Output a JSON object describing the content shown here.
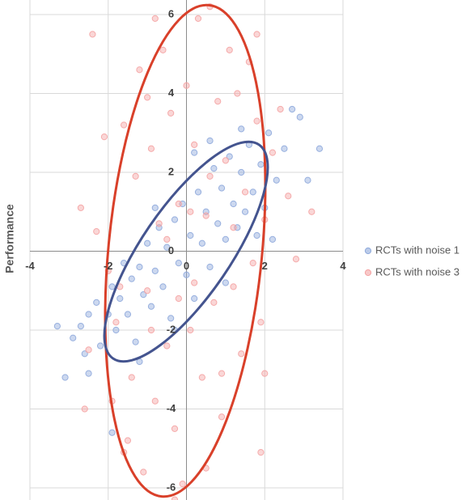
{
  "chart_data": {
    "type": "scatter",
    "y_axis_label": "Performance",
    "xlim": [
      -4,
      4
    ],
    "ylim": [
      -6,
      6
    ],
    "xticks": [
      -4,
      -2,
      0,
      2,
      4
    ],
    "yticks": [
      -6,
      -4,
      -2,
      0,
      2,
      4,
      6
    ],
    "grid": true,
    "legend": "right",
    "series": [
      {
        "name": "RCTs with noise 1",
        "color": "#8ea9db",
        "x": [
          -3.3,
          -3.1,
          -2.9,
          -2.7,
          -2.6,
          -2.5,
          -2.3,
          -2.2,
          -2.0,
          -1.9,
          -1.8,
          -1.7,
          -1.6,
          -1.5,
          -1.4,
          -1.3,
          -1.2,
          -1.1,
          -1.0,
          -0.9,
          -0.8,
          -0.7,
          -0.6,
          -0.5,
          -0.4,
          -0.3,
          -0.2,
          -0.1,
          0.0,
          0.1,
          0.2,
          0.3,
          0.4,
          0.5,
          0.6,
          0.7,
          0.8,
          0.9,
          1.0,
          1.1,
          1.2,
          1.3,
          1.4,
          1.5,
          1.6,
          1.7,
          1.8,
          1.9,
          2.0,
          2.1,
          2.3,
          2.5,
          2.7,
          2.9,
          3.1,
          3.4,
          -1.9,
          -2.5,
          0.2,
          -0.8,
          1.0,
          -0.3,
          0.6,
          -1.2,
          1.4,
          2.2
        ],
        "values": [
          -1.9,
          -3.2,
          -2.2,
          -1.9,
          -2.6,
          -1.6,
          -1.3,
          -2.4,
          -1.6,
          -0.9,
          -2.0,
          -1.2,
          -0.3,
          -1.6,
          -0.7,
          -2.3,
          -0.4,
          -1.1,
          0.2,
          -1.4,
          -0.5,
          0.6,
          -0.9,
          0.1,
          -1.7,
          0.8,
          -0.3,
          1.2,
          -0.6,
          0.4,
          -1.2,
          1.5,
          0.2,
          1.0,
          -0.4,
          2.1,
          0.7,
          1.6,
          0.3,
          2.4,
          1.2,
          0.6,
          2.0,
          1.0,
          2.7,
          1.5,
          0.4,
          2.2,
          1.1,
          3.0,
          1.8,
          2.6,
          3.6,
          3.4,
          1.8,
          2.6,
          -4.6,
          -3.1,
          2.5,
          1.1,
          -0.8,
          -2.0,
          2.8,
          -2.8,
          3.1,
          0.3
        ]
      },
      {
        "name": "RCTs with noise 3",
        "color": "#f4a3a3",
        "x": [
          -2.4,
          -1.6,
          -2.1,
          -2.3,
          -2.0,
          -2.6,
          -2.5,
          -1.8,
          -1.5,
          -1.4,
          -1.3,
          -1.2,
          -1.1,
          -1.0,
          -0.9,
          -0.8,
          -0.7,
          -0.6,
          -0.5,
          -0.4,
          -0.3,
          -0.2,
          -0.1,
          0.0,
          0.1,
          0.2,
          0.3,
          0.4,
          0.5,
          0.6,
          0.7,
          0.8,
          0.9,
          1.0,
          1.1,
          1.2,
          1.3,
          1.4,
          1.5,
          1.6,
          1.7,
          1.8,
          1.9,
          2.0,
          2.2,
          2.4,
          2.6,
          2.8,
          3.2,
          -0.9,
          -0.5,
          0.2,
          0.6,
          -1.7,
          1.2,
          -0.2,
          0.9,
          -1.6,
          -2.7,
          -1.9,
          2.0,
          1.9,
          -0.3,
          0.5,
          -0.8,
          1.8,
          -1.0,
          0.1
        ],
        "values": [
          5.5,
          3.2,
          2.9,
          0.5,
          -0.5,
          -4.0,
          -2.5,
          -1.8,
          -4.8,
          -3.2,
          1.9,
          4.6,
          -5.6,
          -1.0,
          2.6,
          -3.8,
          0.7,
          5.1,
          -2.4,
          3.5,
          -4.5,
          1.2,
          -5.9,
          4.2,
          -2.0,
          2.7,
          5.9,
          -3.2,
          0.9,
          6.2,
          -1.3,
          3.8,
          -4.2,
          2.3,
          5.1,
          -0.9,
          4.0,
          -2.6,
          1.5,
          4.8,
          -0.3,
          3.3,
          -1.8,
          0.8,
          2.5,
          3.6,
          1.4,
          -0.2,
          1.0,
          -2.0,
          0.3,
          -0.8,
          1.9,
          -0.9,
          0.6,
          -1.2,
          -3.1,
          -5.1,
          1.1,
          -3.8,
          -3.1,
          -5.1,
          -6.3,
          -5.5,
          5.9,
          5.5,
          3.9,
          1.0
        ]
      }
    ]
  }
}
